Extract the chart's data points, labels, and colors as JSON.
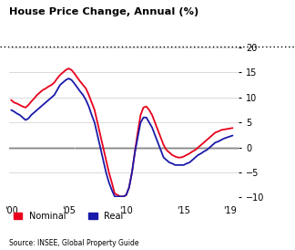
{
  "title": "House Price Change, Annual (%)",
  "source": "Source: INSEE, Global Property Guide",
  "xlim": [
    1999.8,
    2019.8
  ],
  "ylim": [
    -10,
    20
  ],
  "yticks": [
    -10,
    -5,
    0,
    5,
    10,
    15,
    20
  ],
  "xtick_years": [
    2000,
    2005,
    2010,
    2015,
    2019
  ],
  "xtick_labels": [
    "'00",
    "'05",
    "'10",
    "'15",
    "'19"
  ],
  "nominal_color": "#e8001c",
  "real_color": "#1a1aaa",
  "background_color": "#ffffff",
  "nominal": {
    "x": [
      2000,
      2000.25,
      2000.5,
      2000.75,
      2001,
      2001.25,
      2001.5,
      2001.75,
      2002,
      2002.25,
      2002.5,
      2002.75,
      2003,
      2003.25,
      2003.5,
      2003.75,
      2004,
      2004.25,
      2004.5,
      2004.75,
      2005,
      2005.25,
      2005.5,
      2005.75,
      2006,
      2006.25,
      2006.5,
      2006.75,
      2007,
      2007.25,
      2007.5,
      2007.75,
      2008,
      2008.25,
      2008.5,
      2008.75,
      2009,
      2009.25,
      2009.5,
      2009.75,
      2010,
      2010.25,
      2010.5,
      2010.75,
      2011,
      2011.25,
      2011.5,
      2011.75,
      2012,
      2012.25,
      2012.5,
      2012.75,
      2013,
      2013.25,
      2013.5,
      2013.75,
      2014,
      2014.25,
      2014.5,
      2014.75,
      2015,
      2015.25,
      2015.5,
      2015.75,
      2016,
      2016.25,
      2016.5,
      2016.75,
      2017,
      2017.25,
      2017.5,
      2017.75,
      2018,
      2018.25,
      2018.5,
      2018.75,
      2019,
      2019.25
    ],
    "y": [
      9.5,
      9.0,
      8.8,
      8.5,
      8.2,
      8.0,
      8.5,
      9.2,
      9.8,
      10.5,
      11.0,
      11.5,
      11.8,
      12.2,
      12.5,
      13.0,
      13.8,
      14.5,
      15.0,
      15.5,
      15.8,
      15.5,
      14.8,
      14.0,
      13.2,
      12.5,
      11.8,
      10.5,
      9.0,
      7.5,
      5.0,
      2.5,
      0.0,
      -2.5,
      -5.0,
      -7.0,
      -9.2,
      -9.5,
      -9.8,
      -9.8,
      -9.5,
      -8.0,
      -5.0,
      -1.0,
      3.0,
      6.5,
      8.0,
      8.2,
      7.5,
      6.5,
      5.0,
      3.5,
      2.0,
      0.5,
      -0.5,
      -1.0,
      -1.5,
      -1.8,
      -2.0,
      -2.0,
      -1.8,
      -1.5,
      -1.2,
      -0.8,
      -0.5,
      0.0,
      0.5,
      1.0,
      1.5,
      2.0,
      2.5,
      3.0,
      3.2,
      3.5,
      3.6,
      3.7,
      3.8,
      3.9
    ]
  },
  "real": {
    "x": [
      2000,
      2000.25,
      2000.5,
      2000.75,
      2001,
      2001.25,
      2001.5,
      2001.75,
      2002,
      2002.25,
      2002.5,
      2002.75,
      2003,
      2003.25,
      2003.5,
      2003.75,
      2004,
      2004.25,
      2004.5,
      2004.75,
      2005,
      2005.25,
      2005.5,
      2005.75,
      2006,
      2006.25,
      2006.5,
      2006.75,
      2007,
      2007.25,
      2007.5,
      2007.75,
      2008,
      2008.25,
      2008.5,
      2008.75,
      2009,
      2009.25,
      2009.5,
      2009.75,
      2010,
      2010.25,
      2010.5,
      2010.75,
      2011,
      2011.25,
      2011.5,
      2011.75,
      2012,
      2012.25,
      2012.5,
      2012.75,
      2013,
      2013.25,
      2013.5,
      2013.75,
      2014,
      2014.25,
      2014.5,
      2014.75,
      2015,
      2015.25,
      2015.5,
      2015.75,
      2016,
      2016.25,
      2016.5,
      2016.75,
      2017,
      2017.25,
      2017.5,
      2017.75,
      2018,
      2018.25,
      2018.5,
      2018.75,
      2019,
      2019.25
    ],
    "y": [
      7.5,
      7.2,
      6.8,
      6.5,
      6.0,
      5.5,
      5.8,
      6.5,
      7.0,
      7.5,
      8.0,
      8.5,
      9.0,
      9.5,
      10.0,
      10.5,
      11.5,
      12.5,
      13.0,
      13.5,
      13.8,
      13.5,
      12.8,
      12.0,
      11.2,
      10.5,
      9.5,
      8.2,
      6.5,
      5.0,
      2.5,
      0.0,
      -2.5,
      -5.0,
      -7.0,
      -8.5,
      -9.8,
      -9.8,
      -9.8,
      -9.8,
      -9.5,
      -8.0,
      -5.0,
      -1.0,
      2.0,
      5.0,
      6.0,
      6.0,
      5.0,
      4.0,
      2.5,
      1.0,
      -0.5,
      -2.0,
      -2.5,
      -3.0,
      -3.2,
      -3.5,
      -3.5,
      -3.5,
      -3.5,
      -3.2,
      -3.0,
      -2.5,
      -2.0,
      -1.5,
      -1.2,
      -0.8,
      -0.5,
      0.0,
      0.5,
      1.0,
      1.2,
      1.5,
      1.8,
      2.0,
      2.2,
      2.4
    ]
  }
}
